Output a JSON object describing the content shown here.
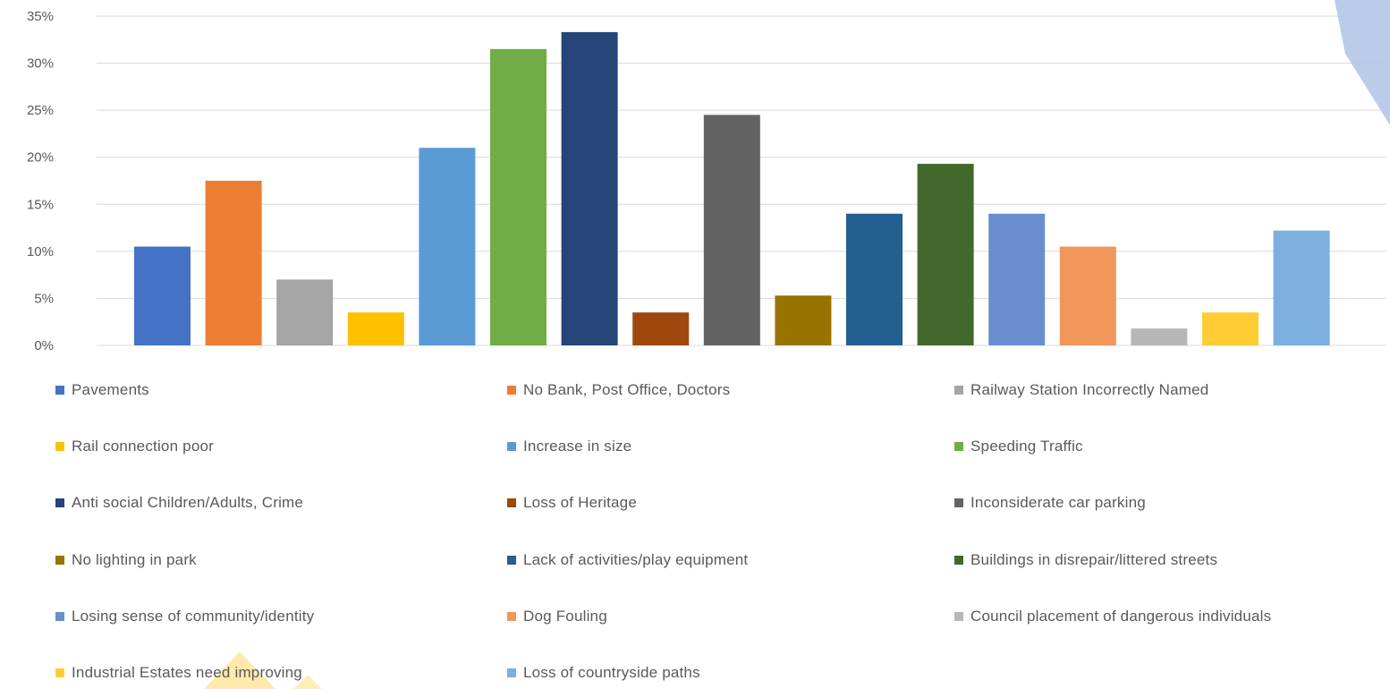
{
  "chart_data": {
    "type": "bar",
    "title": "",
    "xlabel": "",
    "ylabel": "",
    "ylim": [
      0,
      0.35
    ],
    "yticks": [
      "0%",
      "5%",
      "10%",
      "15%",
      "20%",
      "25%",
      "30%",
      "35%"
    ],
    "grid": true,
    "legend_position": "bottom",
    "series": [
      {
        "name": "Pavements",
        "value": 0.105,
        "color": "#4472C4"
      },
      {
        "name": "No Bank, Post Office, Doctors",
        "value": 0.175,
        "color": "#ED7D31"
      },
      {
        "name": "Railway Station Incorrectly Named",
        "value": 0.07,
        "color": "#A5A5A5"
      },
      {
        "name": "Rail connection poor",
        "value": 0.035,
        "color": "#FFC000"
      },
      {
        "name": "Increase in size",
        "value": 0.21,
        "color": "#5B9BD5"
      },
      {
        "name": "Speeding Traffic",
        "value": 0.315,
        "color": "#70AD47"
      },
      {
        "name": "Anti social Children/Adults, Crime",
        "value": 0.333,
        "color": "#264478"
      },
      {
        "name": "Loss of Heritage",
        "value": 0.035,
        "color": "#9E480E"
      },
      {
        "name": "Inconsiderate car parking",
        "value": 0.245,
        "color": "#636363"
      },
      {
        "name": "No lighting in park",
        "value": 0.053,
        "color": "#997300"
      },
      {
        "name": "Lack of activities/play equipment",
        "value": 0.14,
        "color": "#255E91"
      },
      {
        "name": "Buildings in disrepair/littered streets",
        "value": 0.193,
        "color": "#43682B"
      },
      {
        "name": "Losing sense of community/identity",
        "value": 0.14,
        "color": "#698ED0"
      },
      {
        "name": "Dog Fouling",
        "value": 0.105,
        "color": "#F1975A"
      },
      {
        "name": "Council placement of dangerous individuals",
        "value": 0.018,
        "color": "#B7B7B7"
      },
      {
        "name": "Industrial Estates need improving",
        "value": 0.035,
        "color": "#FFCD33"
      },
      {
        "name": "Loss of countryside paths",
        "value": 0.122,
        "color": "#7CAFDD"
      }
    ]
  }
}
